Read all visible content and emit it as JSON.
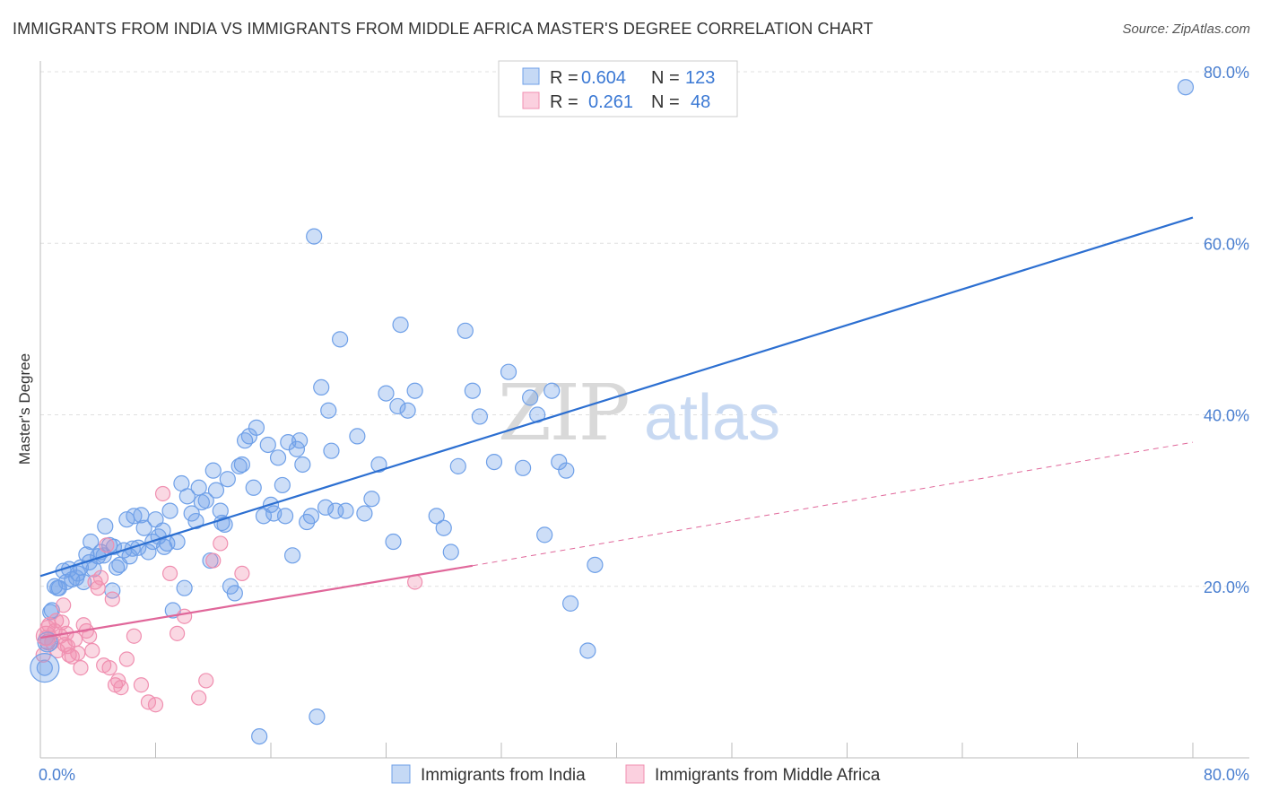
{
  "header": {
    "title": "IMMIGRANTS FROM INDIA VS IMMIGRANTS FROM MIDDLE AFRICA MASTER'S DEGREE CORRELATION CHART",
    "source": "Source: ZipAtlas.com"
  },
  "watermark": {
    "zip": "ZIP",
    "atlas": "atlas"
  },
  "legend": {
    "rows": [
      {
        "r_label": "R =",
        "r_value": "0.604",
        "n_label": "N =",
        "n_value": "123",
        "color": "#6fa0e8"
      },
      {
        "r_label": "R =",
        "r_value": "0.261",
        "n_label": "N =",
        "n_value": "48",
        "color": "#f08fb0"
      }
    ]
  },
  "chart_data": {
    "type": "scatter",
    "title": "IMMIGRANTS FROM INDIA VS IMMIGRANTS FROM MIDDLE AFRICA MASTER'S DEGREE CORRELATION CHART",
    "xlabel": "",
    "ylabel": "Master's Degree",
    "xlim": [
      0,
      80
    ],
    "ylim": [
      0,
      80
    ],
    "x_tick_labels": [
      "0.0%",
      "80.0%"
    ],
    "y_ticks": [
      20,
      40,
      60,
      80
    ],
    "y_tick_labels": [
      "20.0%",
      "40.0%",
      "60.0%",
      "80.0%"
    ],
    "grid": true,
    "legend_position": "top-center",
    "series": [
      {
        "name": "Immigrants from India",
        "color": "#6fa0e8",
        "line_color": "#2c6fd1",
        "trend": {
          "x0": 0,
          "y0": 21.2,
          "x1": 80,
          "y1": 63.0,
          "style": "solid"
        },
        "points": [
          [
            0.3,
            10.5
          ],
          [
            0.5,
            13.5
          ],
          [
            0.7,
            17
          ],
          [
            1,
            20
          ],
          [
            1.3,
            19.8
          ],
          [
            1.6,
            21.8
          ],
          [
            1.8,
            20.5
          ],
          [
            2,
            22
          ],
          [
            2.2,
            20.8
          ],
          [
            2.5,
            21
          ],
          [
            2.8,
            22.2
          ],
          [
            3,
            20.5
          ],
          [
            3.2,
            23.7
          ],
          [
            3.5,
            25.2
          ],
          [
            3.7,
            22
          ],
          [
            4,
            23.5
          ],
          [
            4.2,
            24
          ],
          [
            4.5,
            27
          ],
          [
            4.8,
            24.8
          ],
          [
            5,
            19.5
          ],
          [
            5.3,
            22.2
          ],
          [
            5.5,
            22.5
          ],
          [
            5.8,
            24.2
          ],
          [
            6,
            27.8
          ],
          [
            6.2,
            23.5
          ],
          [
            6.5,
            28.2
          ],
          [
            6.8,
            24.5
          ],
          [
            7,
            28.3
          ],
          [
            7.2,
            26.8
          ],
          [
            7.5,
            24
          ],
          [
            7.8,
            25.2
          ],
          [
            8,
            27.8
          ],
          [
            8.2,
            25.8
          ],
          [
            8.5,
            26.5
          ],
          [
            8.8,
            25
          ],
          [
            9,
            28.8
          ],
          [
            9.2,
            17.2
          ],
          [
            9.5,
            25.2
          ],
          [
            9.8,
            32
          ],
          [
            10,
            19.8
          ],
          [
            10.2,
            30.5
          ],
          [
            10.5,
            28.5
          ],
          [
            10.8,
            27.6
          ],
          [
            11,
            31.5
          ],
          [
            11.2,
            29.8
          ],
          [
            11.5,
            30
          ],
          [
            11.8,
            23
          ],
          [
            12,
            33.5
          ],
          [
            12.2,
            31.2
          ],
          [
            12.5,
            28.8
          ],
          [
            12.8,
            27.2
          ],
          [
            13,
            32.5
          ],
          [
            13.2,
            20
          ],
          [
            13.5,
            19.2
          ],
          [
            13.8,
            34
          ],
          [
            14,
            34.2
          ],
          [
            14.2,
            37
          ],
          [
            14.5,
            37.5
          ],
          [
            14.8,
            31.5
          ],
          [
            15,
            38.5
          ],
          [
            15.2,
            2.5
          ],
          [
            15.5,
            28.2
          ],
          [
            15.8,
            36.5
          ],
          [
            16,
            29.5
          ],
          [
            16.2,
            28.5
          ],
          [
            16.5,
            35
          ],
          [
            16.8,
            31.8
          ],
          [
            17,
            28.2
          ],
          [
            17.2,
            36.8
          ],
          [
            17.5,
            23.6
          ],
          [
            17.8,
            36
          ],
          [
            18,
            37
          ],
          [
            18.2,
            34.2
          ],
          [
            18.5,
            27.5
          ],
          [
            18.8,
            28.2
          ],
          [
            19,
            60.8
          ],
          [
            19.2,
            4.8
          ],
          [
            19.5,
            43.2
          ],
          [
            19.8,
            29.2
          ],
          [
            20,
            40.5
          ],
          [
            20.2,
            35.8
          ],
          [
            20.5,
            28.8
          ],
          [
            20.8,
            48.8
          ],
          [
            21.2,
            28.8
          ],
          [
            22,
            37.5
          ],
          [
            22.5,
            28.5
          ],
          [
            23,
            30.2
          ],
          [
            23.5,
            34.2
          ],
          [
            24,
            42.5
          ],
          [
            24.5,
            25.2
          ],
          [
            24.8,
            41
          ],
          [
            25,
            50.5
          ],
          [
            25.5,
            40.5
          ],
          [
            26,
            42.8
          ],
          [
            27.5,
            28.2
          ],
          [
            28,
            26.8
          ],
          [
            28.5,
            24
          ],
          [
            29,
            34
          ],
          [
            29.5,
            49.8
          ],
          [
            30,
            42.8
          ],
          [
            30.5,
            39.8
          ],
          [
            31.5,
            34.5
          ],
          [
            32.5,
            45
          ],
          [
            33.5,
            33.8
          ],
          [
            34,
            42
          ],
          [
            34.5,
            40
          ],
          [
            35,
            26
          ],
          [
            35.5,
            42.8
          ],
          [
            36,
            34.5
          ],
          [
            36.5,
            33.5
          ],
          [
            36.8,
            18
          ],
          [
            38,
            12.5
          ],
          [
            38.5,
            22.5
          ],
          [
            79.5,
            78.2
          ],
          [
            0.8,
            17.2
          ],
          [
            1.2,
            19.8
          ],
          [
            2.6,
            21.5
          ],
          [
            3.4,
            22.8
          ],
          [
            4.4,
            23.6
          ],
          [
            5.1,
            24.6
          ],
          [
            6.4,
            24.4
          ],
          [
            8.6,
            24.6
          ],
          [
            12.6,
            27.4
          ]
        ]
      },
      {
        "name": "Immigrants from Middle Africa",
        "color": "#f08fb0",
        "line_color": "#e0679a",
        "trend": {
          "x0": 0,
          "y0": 14.0,
          "x1": 30,
          "y1": 22.4,
          "style": "solid"
        },
        "trend_extension": {
          "x0": 30,
          "y0": 22.4,
          "x1": 80,
          "y1": 36.8,
          "style": "dashed"
        },
        "points": [
          [
            0.2,
            12
          ],
          [
            0.4,
            14
          ],
          [
            0.6,
            15.5
          ],
          [
            0.8,
            13.5
          ],
          [
            1,
            14.8
          ],
          [
            1.1,
            16
          ],
          [
            1.2,
            12.5
          ],
          [
            1.4,
            14.2
          ],
          [
            1.5,
            15.8
          ],
          [
            1.6,
            17.8
          ],
          [
            1.7,
            13.2
          ],
          [
            1.8,
            14.5
          ],
          [
            2,
            12
          ],
          [
            2.2,
            11.8
          ],
          [
            2.4,
            13.8
          ],
          [
            2.6,
            12.2
          ],
          [
            2.8,
            10.5
          ],
          [
            3,
            15.5
          ],
          [
            3.2,
            14.8
          ],
          [
            3.4,
            14.2
          ],
          [
            3.6,
            12.5
          ],
          [
            3.8,
            20.5
          ],
          [
            4,
            19.8
          ],
          [
            4.2,
            21
          ],
          [
            4.4,
            10.8
          ],
          [
            4.6,
            24.8
          ],
          [
            4.8,
            10.5
          ],
          [
            5,
            18.5
          ],
          [
            5.2,
            8.5
          ],
          [
            5.4,
            9
          ],
          [
            5.6,
            8.2
          ],
          [
            6,
            11.5
          ],
          [
            6.5,
            14.2
          ],
          [
            7,
            8.5
          ],
          [
            7.5,
            6.5
          ],
          [
            8,
            6.2
          ],
          [
            8.5,
            30.8
          ],
          [
            9,
            21.5
          ],
          [
            9.5,
            14.5
          ],
          [
            10,
            16.5
          ],
          [
            11,
            7
          ],
          [
            11.5,
            9
          ],
          [
            12,
            23
          ],
          [
            12.5,
            25
          ],
          [
            14,
            21.5
          ],
          [
            26,
            20.5
          ],
          [
            0.5,
            15.2
          ],
          [
            1.9,
            13
          ]
        ]
      }
    ]
  }
}
